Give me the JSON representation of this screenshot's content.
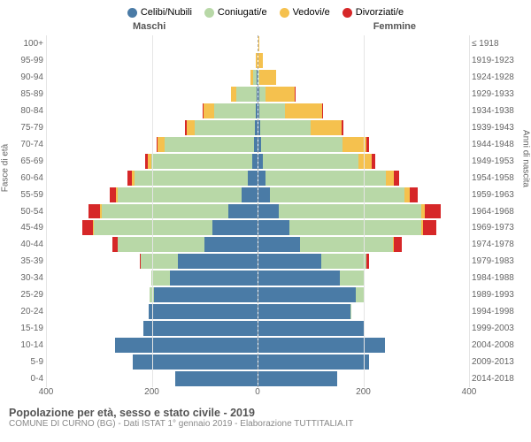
{
  "chart": {
    "type": "population-pyramid",
    "legend": [
      {
        "label": "Celibi/Nubili",
        "color": "#4a7ba6"
      },
      {
        "label": "Coniugati/e",
        "color": "#b8d8a7"
      },
      {
        "label": "Vedovi/e",
        "color": "#f5c14e"
      },
      {
        "label": "Divorziati/e",
        "color": "#d62728"
      }
    ],
    "male_label": "Maschi",
    "female_label": "Femmine",
    "left_axis_title": "Fasce di età",
    "right_axis_title": "Anni di nascita",
    "background_color": "#ffffff",
    "grid_color": "#e5e5e5",
    "x_max": 400,
    "x_ticks": [
      0,
      200,
      400
    ],
    "age_groups": [
      "100+",
      "95-99",
      "90-94",
      "85-89",
      "80-84",
      "75-79",
      "70-74",
      "65-69",
      "60-64",
      "55-59",
      "50-54",
      "45-49",
      "40-44",
      "35-39",
      "30-34",
      "25-29",
      "20-24",
      "15-19",
      "10-14",
      "5-9",
      "0-4"
    ],
    "birth_years": [
      "≤ 1918",
      "1919-1923",
      "1924-1928",
      "1929-1933",
      "1934-1938",
      "1939-1943",
      "1944-1948",
      "1949-1953",
      "1954-1958",
      "1959-1963",
      "1964-1968",
      "1969-1973",
      "1974-1978",
      "1979-1983",
      "1984-1988",
      "1989-1993",
      "1994-1998",
      "1999-2003",
      "2004-2008",
      "2009-2013",
      "2014-2018"
    ],
    "males": [
      {
        "n": 0,
        "c": 0,
        "v": 0,
        "d": 0
      },
      {
        "n": 0,
        "c": 0,
        "v": 3,
        "d": 0
      },
      {
        "n": 1,
        "c": 6,
        "v": 5,
        "d": 0
      },
      {
        "n": 1,
        "c": 38,
        "v": 10,
        "d": 0
      },
      {
        "n": 3,
        "c": 78,
        "v": 20,
        "d": 2
      },
      {
        "n": 4,
        "c": 115,
        "v": 15,
        "d": 2
      },
      {
        "n": 6,
        "c": 170,
        "v": 12,
        "d": 3
      },
      {
        "n": 10,
        "c": 190,
        "v": 8,
        "d": 4
      },
      {
        "n": 18,
        "c": 215,
        "v": 4,
        "d": 8
      },
      {
        "n": 30,
        "c": 235,
        "v": 3,
        "d": 12
      },
      {
        "n": 55,
        "c": 240,
        "v": 2,
        "d": 22
      },
      {
        "n": 85,
        "c": 225,
        "v": 1,
        "d": 20
      },
      {
        "n": 100,
        "c": 165,
        "v": 0,
        "d": 10
      },
      {
        "n": 150,
        "c": 70,
        "v": 0,
        "d": 2
      },
      {
        "n": 165,
        "c": 35,
        "v": 0,
        "d": 1
      },
      {
        "n": 195,
        "c": 8,
        "v": 0,
        "d": 0
      },
      {
        "n": 205,
        "c": 1,
        "v": 0,
        "d": 0
      },
      {
        "n": 215,
        "c": 0,
        "v": 0,
        "d": 0
      },
      {
        "n": 270,
        "c": 0,
        "v": 0,
        "d": 0
      },
      {
        "n": 235,
        "c": 0,
        "v": 0,
        "d": 0
      },
      {
        "n": 155,
        "c": 0,
        "v": 0,
        "d": 0
      }
    ],
    "females": [
      {
        "n": 0,
        "c": 0,
        "v": 1,
        "d": 0
      },
      {
        "n": 0,
        "c": 0,
        "v": 10,
        "d": 0
      },
      {
        "n": 1,
        "c": 2,
        "v": 32,
        "d": 0
      },
      {
        "n": 2,
        "c": 12,
        "v": 55,
        "d": 1
      },
      {
        "n": 3,
        "c": 48,
        "v": 70,
        "d": 2
      },
      {
        "n": 4,
        "c": 95,
        "v": 60,
        "d": 3
      },
      {
        "n": 6,
        "c": 155,
        "v": 45,
        "d": 4
      },
      {
        "n": 10,
        "c": 180,
        "v": 25,
        "d": 7
      },
      {
        "n": 14,
        "c": 228,
        "v": 15,
        "d": 10
      },
      {
        "n": 22,
        "c": 255,
        "v": 10,
        "d": 15
      },
      {
        "n": 40,
        "c": 270,
        "v": 6,
        "d": 30
      },
      {
        "n": 60,
        "c": 250,
        "v": 3,
        "d": 25
      },
      {
        "n": 80,
        "c": 175,
        "v": 2,
        "d": 15
      },
      {
        "n": 120,
        "c": 85,
        "v": 0,
        "d": 5
      },
      {
        "n": 155,
        "c": 45,
        "v": 0,
        "d": 2
      },
      {
        "n": 185,
        "c": 15,
        "v": 0,
        "d": 0
      },
      {
        "n": 175,
        "c": 2,
        "v": 0,
        "d": 0
      },
      {
        "n": 200,
        "c": 0,
        "v": 0,
        "d": 0
      },
      {
        "n": 240,
        "c": 0,
        "v": 0,
        "d": 0
      },
      {
        "n": 210,
        "c": 0,
        "v": 0,
        "d": 0
      },
      {
        "n": 150,
        "c": 0,
        "v": 0,
        "d": 0
      }
    ],
    "footer_title": "Popolazione per età, sesso e stato civile - 2019",
    "footer_subtitle": "COMUNE DI CURNO (BG) - Dati ISTAT 1° gennaio 2019 - Elaborazione TUTTITALIA.IT"
  }
}
